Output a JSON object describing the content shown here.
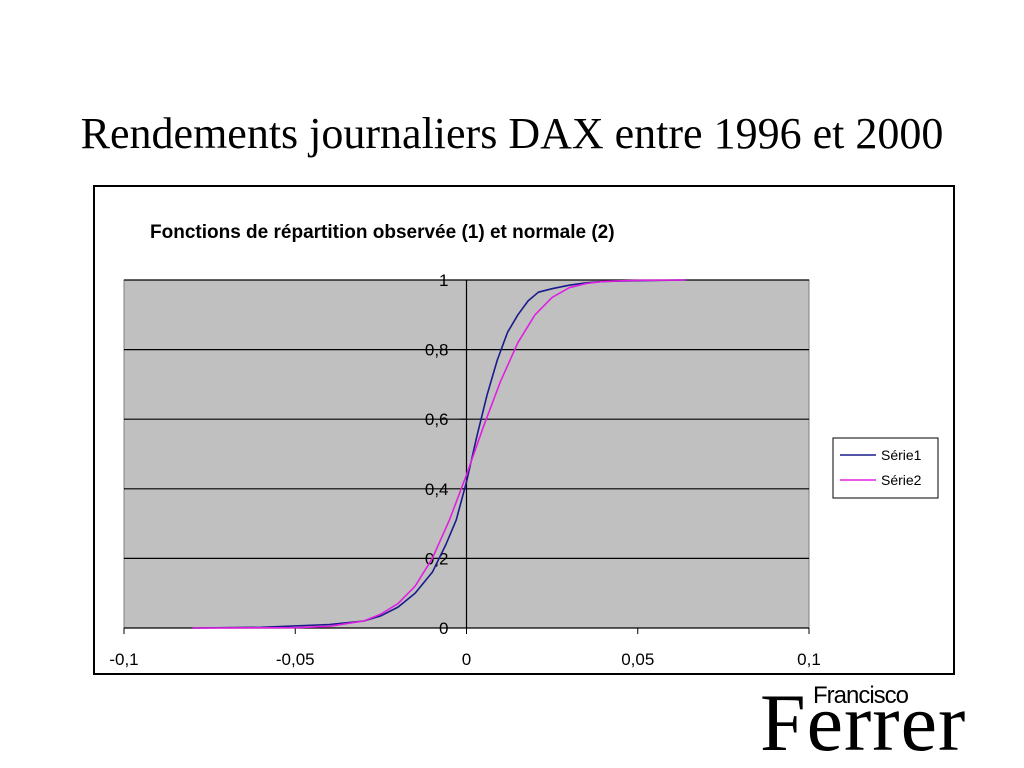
{
  "slide": {
    "title": "Rendements journaliers DAX entre 1996 et 2000",
    "logo": {
      "top_text": "Francisco",
      "main_text": "Ferrer"
    }
  },
  "colors": {
    "plot_background": "#c0c0c0",
    "serie1": "#1a1a8c",
    "serie2": "#e020e0"
  },
  "chart_data": {
    "type": "line",
    "title": "Fonctions de répartition observée (1) et normale (2)",
    "xlim": [
      -0.1,
      0.1
    ],
    "ylim": [
      0,
      1
    ],
    "x_ticks": [
      -0.1,
      -0.05,
      0,
      0.05,
      0.1
    ],
    "x_tick_labels": [
      "-0,1",
      "-0,05",
      "0",
      "0,05",
      "0,1"
    ],
    "y_ticks": [
      0,
      0.2,
      0.4,
      0.6,
      0.8,
      1
    ],
    "y_tick_labels": [
      "0",
      "0,2",
      "0,4",
      "0,6",
      "0,8",
      "1"
    ],
    "grid": "horizontal",
    "legend_position": "right",
    "series": [
      {
        "name": "Série1",
        "color": "#1a1a8c",
        "x": [
          -0.08,
          -0.06,
          -0.04,
          -0.03,
          -0.025,
          -0.02,
          -0.015,
          -0.01,
          -0.006,
          -0.003,
          0,
          0.003,
          0.006,
          0.009,
          0.012,
          0.015,
          0.018,
          0.021,
          0.025,
          0.03,
          0.035,
          0.04,
          0.05,
          0.064
        ],
        "values": [
          0,
          0.002,
          0.01,
          0.02,
          0.035,
          0.06,
          0.1,
          0.16,
          0.24,
          0.31,
          0.42,
          0.55,
          0.67,
          0.77,
          0.85,
          0.9,
          0.94,
          0.965,
          0.975,
          0.985,
          0.992,
          0.996,
          0.998,
          1
        ]
      },
      {
        "name": "Série2",
        "color": "#e020e0",
        "x": [
          -0.08,
          -0.05,
          -0.04,
          -0.03,
          -0.025,
          -0.02,
          -0.015,
          -0.01,
          -0.005,
          0,
          0.005,
          0.01,
          0.015,
          0.02,
          0.025,
          0.03,
          0.035,
          0.04,
          0.05,
          0.064
        ],
        "values": [
          0,
          0.001,
          0.005,
          0.02,
          0.04,
          0.07,
          0.12,
          0.2,
          0.31,
          0.44,
          0.58,
          0.71,
          0.82,
          0.9,
          0.95,
          0.978,
          0.99,
          0.996,
          0.999,
          1
        ]
      }
    ]
  }
}
